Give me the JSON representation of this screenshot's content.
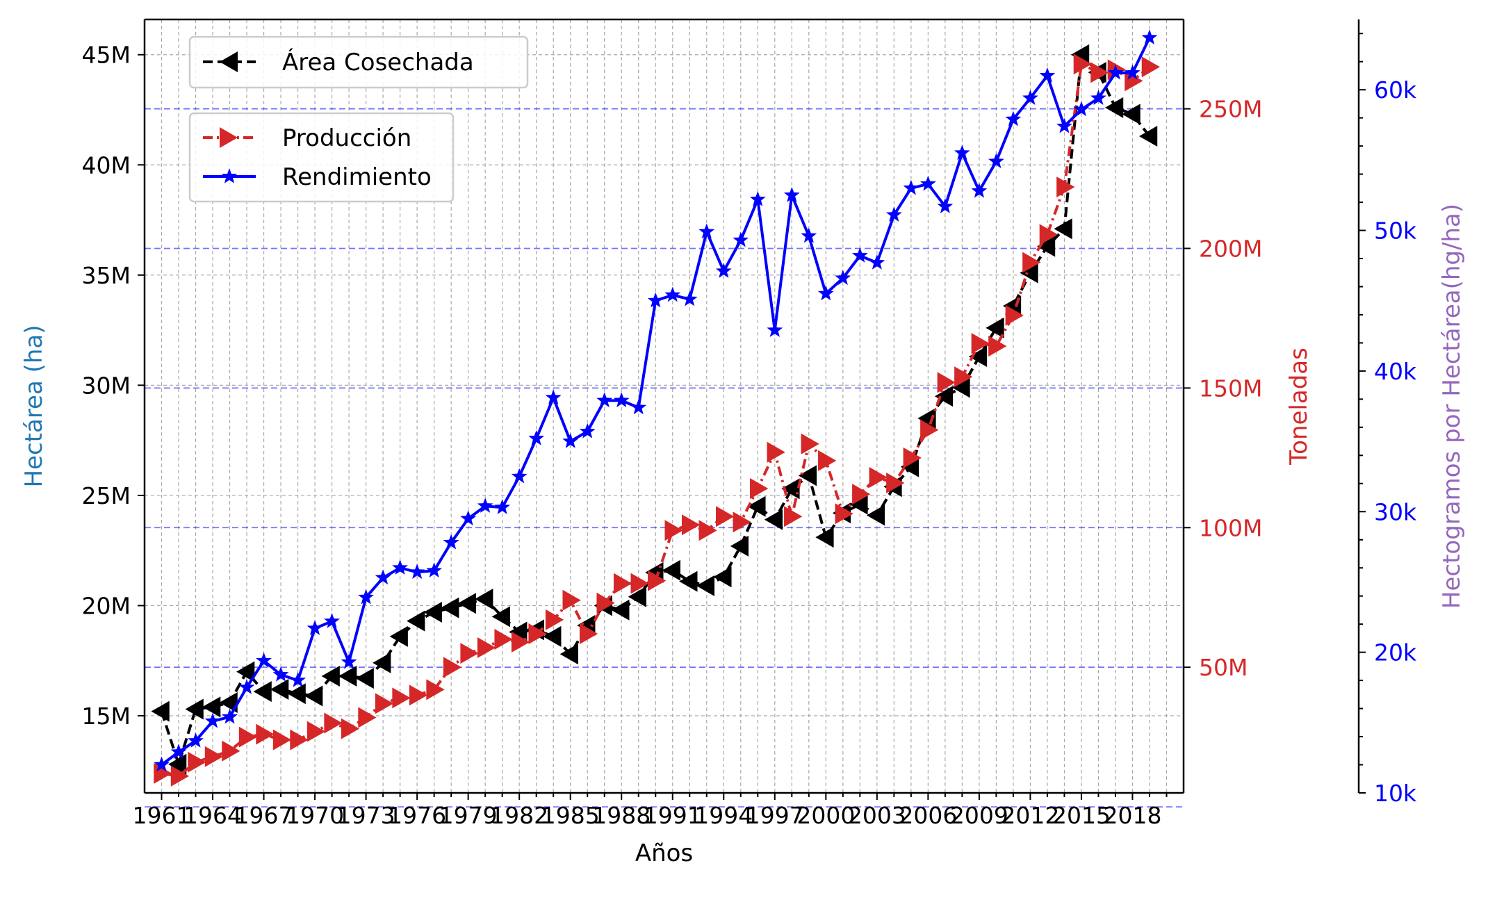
{
  "chart_data": {
    "type": "line",
    "xlabel": "Años",
    "x_tick_labels": [
      "1961",
      "1964",
      "1967",
      "1970",
      "1973",
      "1976",
      "1979",
      "1982",
      "1985",
      "1988",
      "1991",
      "1994",
      "1997",
      "2000",
      "2003",
      "2006",
      "2009",
      "2012",
      "2015",
      "2018"
    ],
    "years": [
      1961,
      1962,
      1963,
      1964,
      1965,
      1966,
      1967,
      1968,
      1969,
      1970,
      1971,
      1972,
      1973,
      1974,
      1975,
      1976,
      1977,
      1978,
      1979,
      1980,
      1981,
      1982,
      1983,
      1984,
      1985,
      1986,
      1987,
      1988,
      1989,
      1990,
      1991,
      1992,
      1993,
      1994,
      1995,
      1996,
      1997,
      1998,
      1999,
      2000,
      2001,
      2002,
      2003,
      2004,
      2005,
      2006,
      2007,
      2008,
      2009,
      2010,
      2011,
      2012,
      2013,
      2014,
      2015,
      2016,
      2017,
      2018,
      2019
    ],
    "axes": {
      "left": {
        "label": "Hectárea (ha)",
        "label_color": "#1f77b4",
        "tick_color": "#000000",
        "ylim": [
          11.5,
          46.6
        ],
        "ticks": [
          15,
          20,
          25,
          30,
          35,
          40,
          45
        ],
        "tick_labels": [
          "15M",
          "20M",
          "25M",
          "30M",
          "35M",
          "40M",
          "45M"
        ],
        "unit": "millones de ha"
      },
      "right": {
        "label": "Toneladas",
        "label_color": "#d62728",
        "tick_color": "#d62728",
        "ylim": [
          5,
          282
        ],
        "ticks": [
          50,
          100,
          150,
          200,
          250
        ],
        "tick_labels": [
          "50M",
          "100M",
          "150M",
          "200M",
          "250M"
        ],
        "unit": "millones de t"
      },
      "right2": {
        "label": "Hectogramos por Hectárea(hg/ha)",
        "label_color": "#9467bd",
        "tick_color": "#0000ff",
        "ylim": [
          10,
          65
        ],
        "ticks": [
          10,
          20,
          30,
          40,
          50,
          60
        ],
        "tick_labels": [
          "10k",
          "20k",
          "30k",
          "40k",
          "50k",
          "60k"
        ],
        "unit": "miles de hg/ha"
      }
    },
    "series": [
      {
        "name": "Área Cosechada",
        "axis": "left",
        "color": "#000000",
        "style": "dashed",
        "marker": "triangle-left",
        "values": [
          15.2,
          12.8,
          15.3,
          15.4,
          15.6,
          17.0,
          16.1,
          16.2,
          16.0,
          15.9,
          16.8,
          16.8,
          16.7,
          17.4,
          18.6,
          19.3,
          19.7,
          19.9,
          20.1,
          20.3,
          19.5,
          18.8,
          18.9,
          18.6,
          17.8,
          19.1,
          20.0,
          19.8,
          20.4,
          21.5,
          21.6,
          21.1,
          20.9,
          21.3,
          22.7,
          24.5,
          23.9,
          25.3,
          25.9,
          23.1,
          24.2,
          24.6,
          24.1,
          25.4,
          26.3,
          28.5,
          29.5,
          29.9,
          31.3,
          32.6,
          33.6,
          35.1,
          36.3,
          37.1,
          45.0,
          44.2,
          42.6,
          42.3,
          41.3
        ]
      },
      {
        "name": "Producción",
        "axis": "right",
        "color": "#d62728",
        "style": "dashdot",
        "marker": "triangle-right",
        "values": [
          12,
          11,
          16,
          18,
          20,
          25,
          26,
          24,
          24,
          27,
          30,
          28,
          32,
          37,
          39,
          40,
          42,
          50,
          55,
          57,
          60,
          59,
          62,
          67,
          74,
          62,
          73,
          80,
          80,
          81,
          99,
          101,
          99,
          104,
          102,
          114,
          127,
          104,
          130,
          124,
          105,
          112,
          118,
          116,
          125,
          135,
          152,
          154,
          166,
          165,
          176,
          195,
          205,
          222,
          266,
          263,
          264,
          260,
          265
        ]
      },
      {
        "name": "Rendimiento",
        "axis": "right2",
        "color": "#0000ff",
        "style": "solid",
        "marker": "star",
        "values": [
          12.0,
          12.9,
          13.7,
          15.1,
          15.4,
          17.5,
          19.4,
          18.4,
          18.0,
          21.7,
          22.2,
          19.3,
          23.9,
          25.3,
          26.0,
          25.7,
          25.8,
          27.8,
          29.5,
          30.4,
          30.3,
          32.5,
          35.2,
          38.1,
          35.0,
          35.7,
          37.9,
          37.9,
          37.4,
          45.0,
          45.4,
          45.1,
          49.9,
          47.1,
          49.3,
          52.2,
          42.9,
          52.5,
          49.6,
          45.5,
          46.6,
          48.2,
          47.7,
          51.1,
          53.0,
          53.3,
          51.7,
          55.5,
          52.8,
          54.9,
          57.9,
          59.4,
          61.0,
          57.4,
          58.6,
          59.4,
          61.2,
          61.2,
          63.7
        ]
      }
    ],
    "grid": true,
    "legend": [
      {
        "position": "top-left",
        "entries": [
          "Área Cosechada"
        ]
      },
      {
        "position": "upper-left",
        "entries": [
          "Producción",
          "Rendimiento"
        ]
      }
    ]
  }
}
